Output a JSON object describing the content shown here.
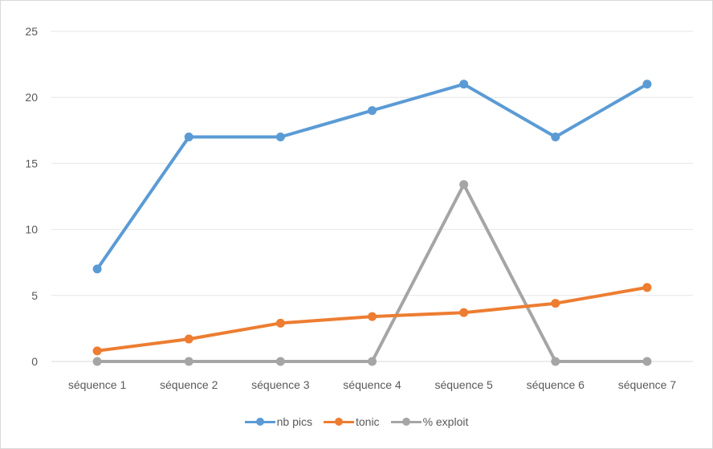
{
  "chart_data": {
    "type": "line",
    "title": "",
    "xlabel": "",
    "ylabel": "",
    "categories": [
      "séquence 1",
      "séquence 2",
      "séquence 3",
      "séquence 4",
      "séquence 5",
      "séquence 6",
      "séquence 7"
    ],
    "ylim": [
      0,
      25
    ],
    "yticks": [
      0,
      5,
      10,
      15,
      20,
      25
    ],
    "grid": true,
    "legend_position": "bottom",
    "series": [
      {
        "name": "nb pics",
        "color": "#5b9bd5",
        "values": [
          7,
          17,
          17,
          19,
          21,
          17,
          21
        ]
      },
      {
        "name": "tonic",
        "color": "#ed7d31",
        "values": [
          0.8,
          1.7,
          2.9,
          3.4,
          3.7,
          4.4,
          5.6
        ]
      },
      {
        "name": "% exploit",
        "color": "#a5a5a5",
        "values": [
          0,
          0,
          0,
          0,
          13.4,
          0,
          0
        ]
      }
    ]
  }
}
